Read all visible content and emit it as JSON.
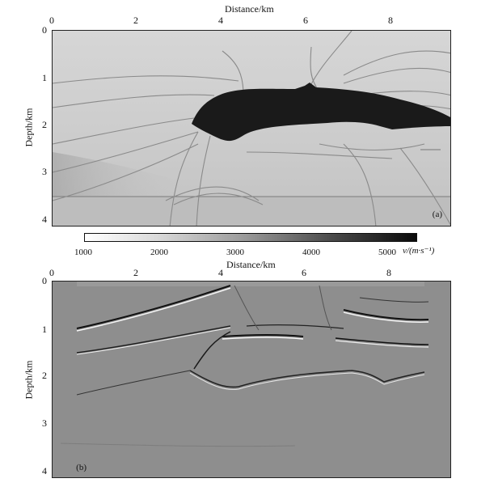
{
  "figure": {
    "panel_a": {
      "x_axis_title": "Distance/km",
      "y_axis_title": "Depth/km",
      "x_ticks": [
        "0",
        "2",
        "4",
        "6",
        "8"
      ],
      "y_ticks": [
        "0",
        "1",
        "2",
        "3",
        "4"
      ],
      "panel_label": "(a)"
    },
    "colorbar": {
      "ticks": [
        "1000",
        "2000",
        "3000",
        "4000",
        "5000"
      ],
      "unit_label": "v/(m·s⁻¹)"
    },
    "panel_b": {
      "x_axis_title": "Distance/km",
      "y_axis_title": "Depth/km",
      "x_ticks": [
        "0",
        "2",
        "4",
        "6",
        "8"
      ],
      "y_ticks": [
        "0",
        "1",
        "2",
        "3",
        "4"
      ],
      "panel_label": "(b)"
    }
  },
  "colors": {
    "salt_body": "#1a1a1a",
    "background_gray": "#c4c4c4",
    "seismic_gray": "#8c8c8c"
  }
}
